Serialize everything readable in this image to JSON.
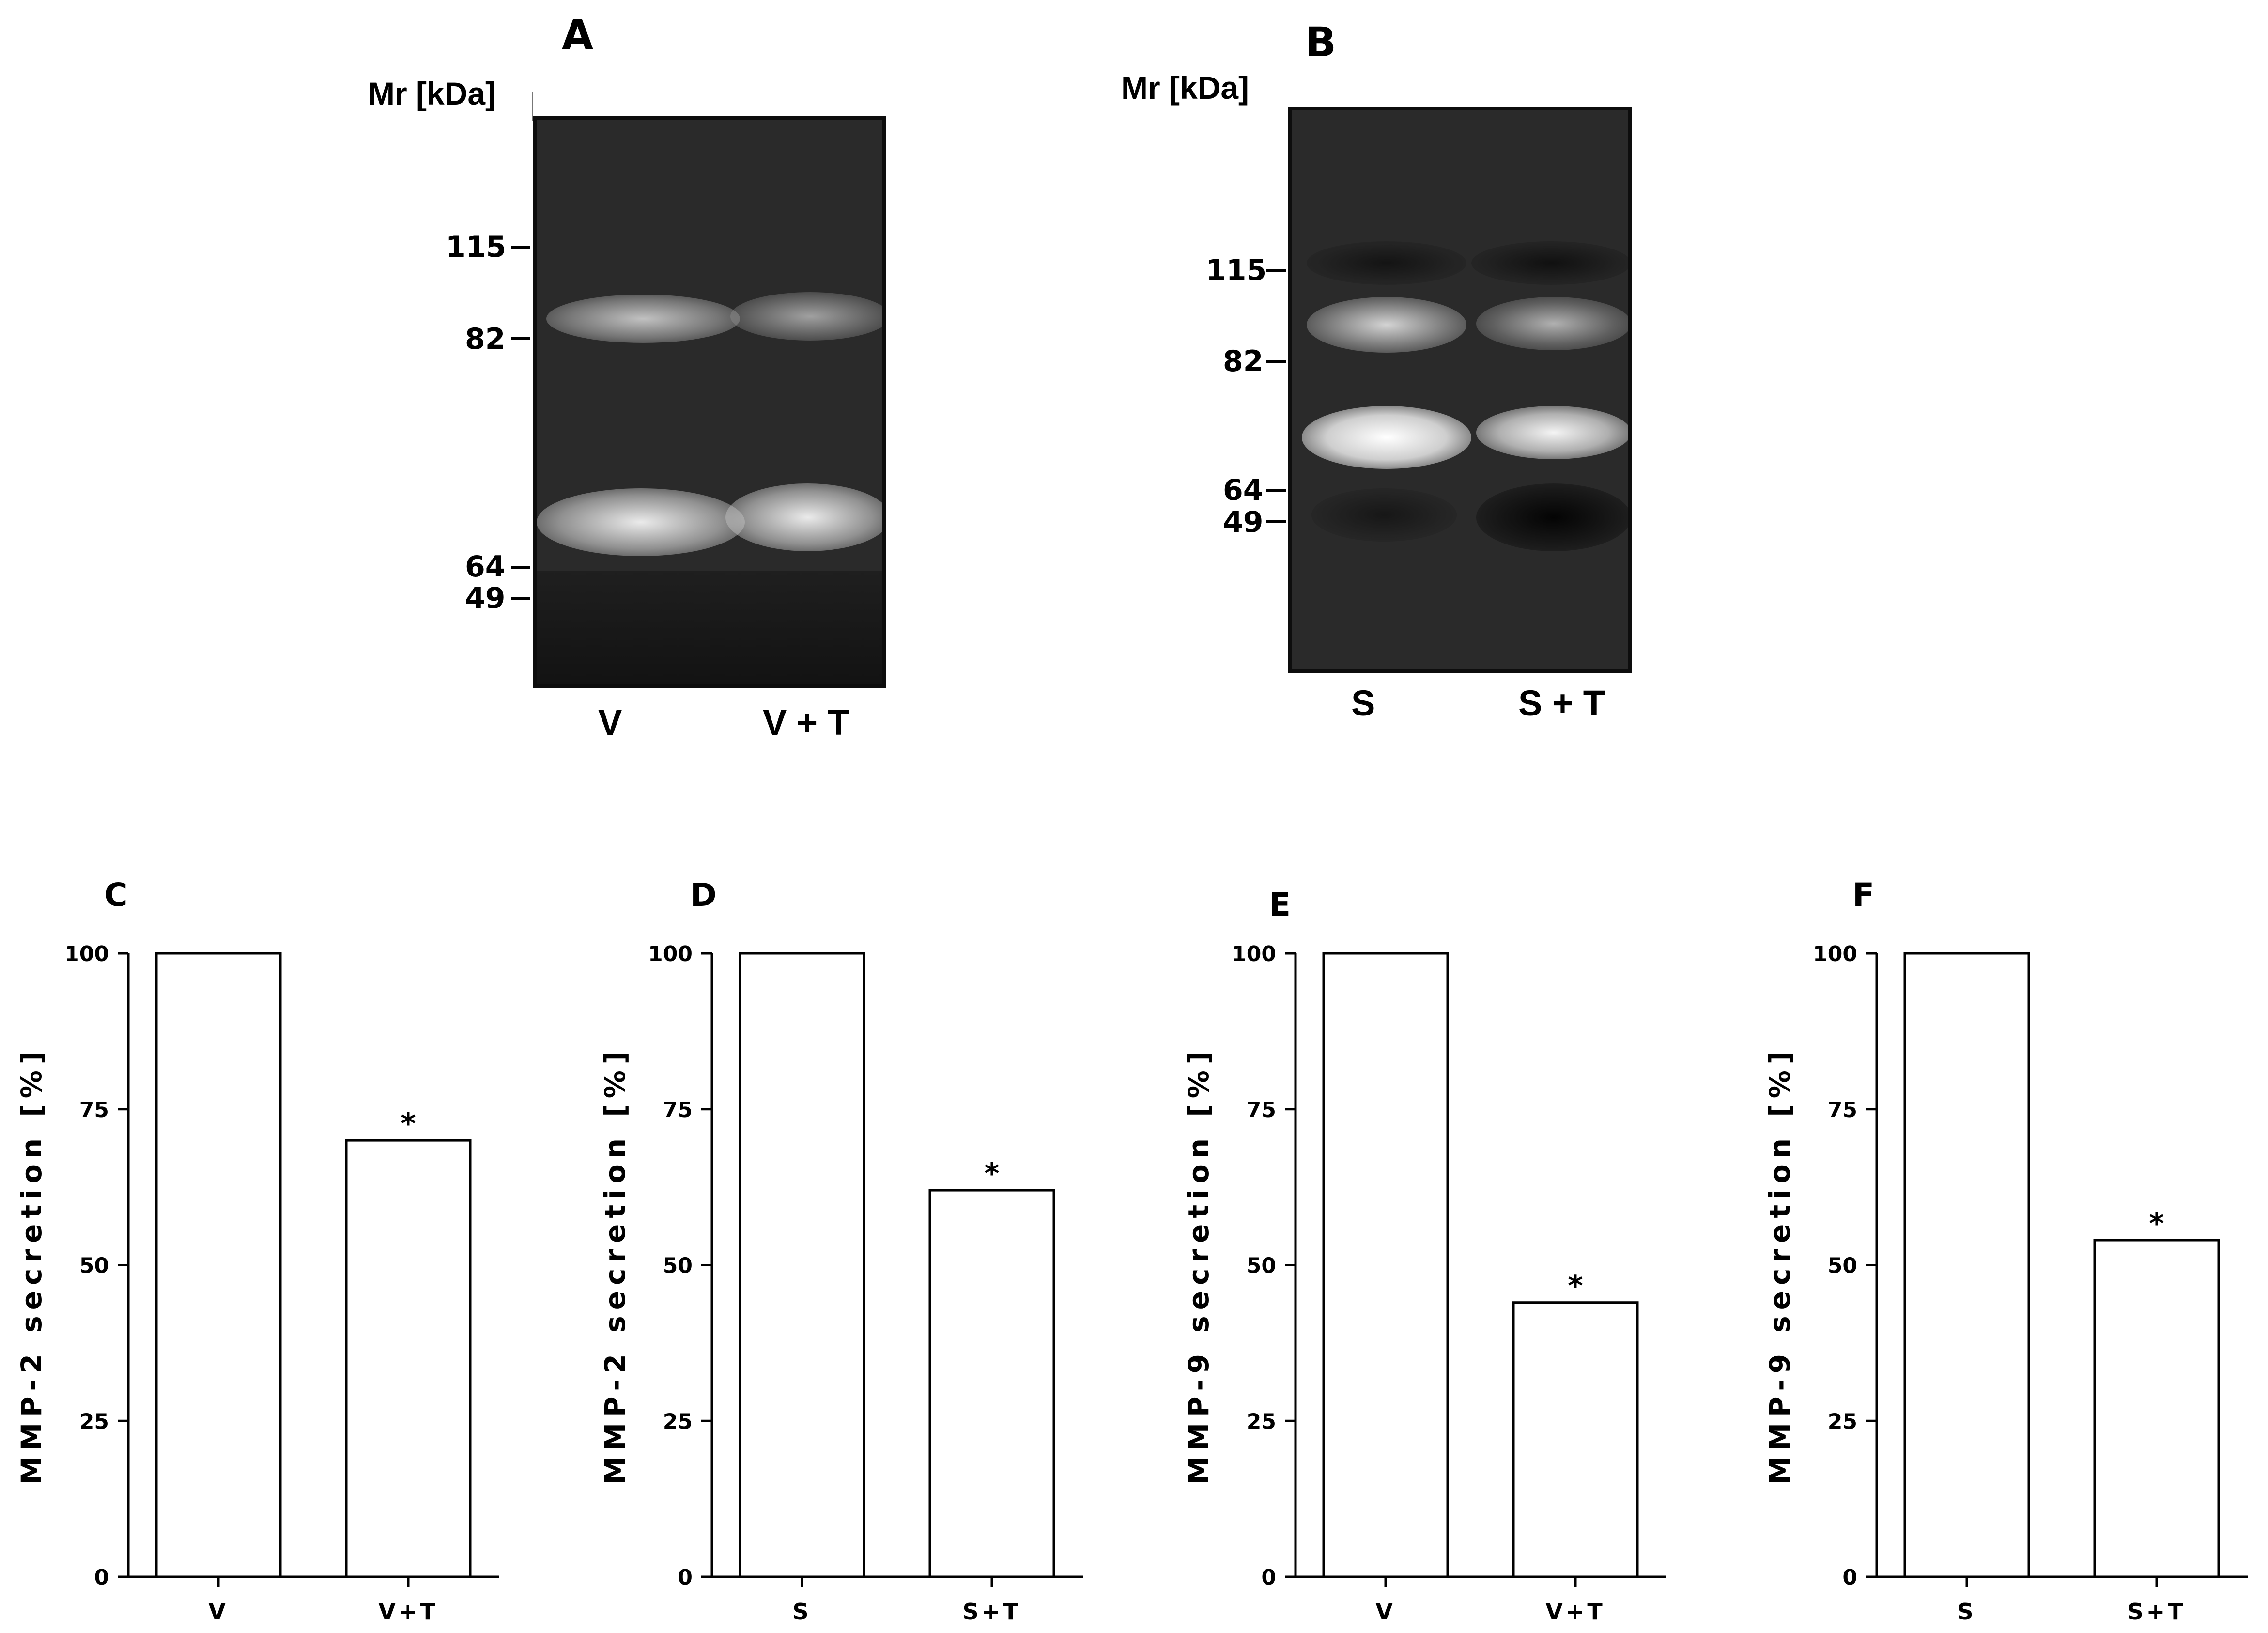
{
  "gels": [
    {
      "panel": "A",
      "mr_label": "Mr [kDa]",
      "markers": [
        "115",
        "82",
        "64",
        "49"
      ],
      "lanes": [
        "V",
        "V + T"
      ]
    },
    {
      "panel": "B",
      "mr_label": "Mr [kDa]",
      "markers": [
        "115",
        "82",
        "64",
        "49"
      ],
      "lanes": [
        "S",
        "S + T"
      ]
    }
  ],
  "chart_data": [
    {
      "panel": "C",
      "type": "bar",
      "categories": [
        "V",
        "V+T"
      ],
      "values": [
        100,
        70
      ],
      "ylabel": "MMP-2 secretion [%]",
      "ylim": [
        0,
        100
      ],
      "yticks": [
        "0",
        "25",
        "50",
        "75",
        "100"
      ],
      "annotations": [
        "",
        "*"
      ],
      "grid": false
    },
    {
      "panel": "D",
      "type": "bar",
      "categories": [
        "S",
        "S+T"
      ],
      "values": [
        100,
        62
      ],
      "ylabel": "MMP-2 secretion [%]",
      "ylim": [
        0,
        100
      ],
      "yticks": [
        "0",
        "25",
        "50",
        "75",
        "100"
      ],
      "annotations": [
        "",
        "*"
      ],
      "grid": false
    },
    {
      "panel": "E",
      "type": "bar",
      "categories": [
        "V",
        "V+T"
      ],
      "values": [
        100,
        44
      ],
      "ylabel": "MMP-9 secretion [%]",
      "ylim": [
        0,
        100
      ],
      "yticks": [
        "0",
        "25",
        "50",
        "75",
        "100"
      ],
      "annotations": [
        "",
        "*"
      ],
      "grid": false
    },
    {
      "panel": "F",
      "type": "bar",
      "categories": [
        "S",
        "S+T"
      ],
      "values": [
        100,
        54
      ],
      "ylabel": "MMP-9 secretion [%]",
      "ylim": [
        0,
        100
      ],
      "yticks": [
        "0",
        "25",
        "50",
        "75",
        "100"
      ],
      "annotations": [
        "",
        "*"
      ],
      "grid": false
    }
  ]
}
